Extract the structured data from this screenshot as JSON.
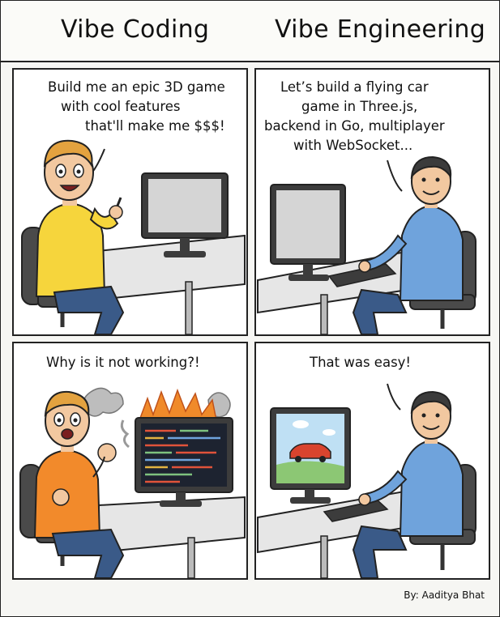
{
  "header": {
    "left_title": "Vibe Coding",
    "right_title": "Vibe Engineering"
  },
  "panels": [
    {
      "speech": [
        "Build me an epic 3D game",
        "with cool features",
        "that'll make me $$$!"
      ]
    },
    {
      "speech": [
        "Let’s build a flying car",
        "game in Three.js,",
        "backend in Go, multiplayer",
        "with WebSocket..."
      ]
    },
    {
      "speech": [
        "Why is it not working?!"
      ]
    },
    {
      "speech": [
        "That was easy!"
      ]
    }
  ],
  "credit": "By: Aaditya Bhat",
  "colors": {
    "yellow_shirt": "#f6d53c",
    "orange_shirt": "#f28a2b",
    "blue_shirt": "#6fa3dc",
    "jeans": "#3a5a88",
    "hair_blond": "#e3a23f",
    "hair_dark": "#3b3b3b",
    "desk": "#e6e6e6",
    "monitor": "#3c3c3c",
    "car": "#d9442e",
    "fire": "#f08a2a"
  }
}
